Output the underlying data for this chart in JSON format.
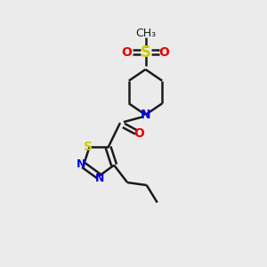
{
  "bg_color": "#ebebeb",
  "bond_color": "#1a1a1a",
  "N_color": "#0000ee",
  "S_color": "#cccc00",
  "O_color": "#ee0000",
  "line_width": 1.8,
  "font_size": 10,
  "xlim": [
    0,
    10
  ],
  "ylim": [
    0,
    10
  ]
}
